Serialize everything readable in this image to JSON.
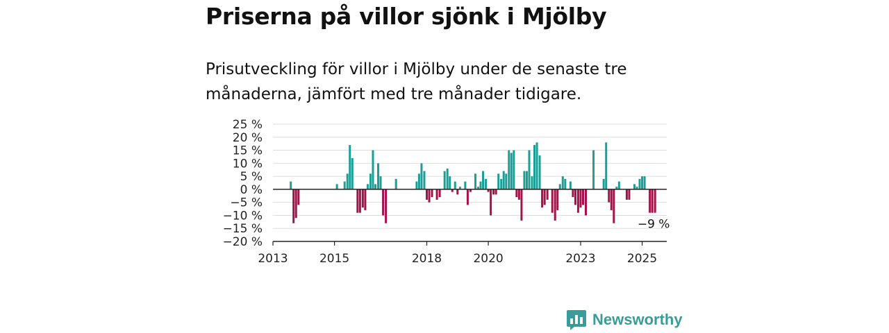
{
  "title": "Priserna på villor sjönk i Mjölby",
  "subtitle": "Prisutveckling för villor i Mjölby under de senaste tre månaderna, jämfört med tre månader tidigare.",
  "brand": "Newsworthy",
  "chart_data": {
    "type": "bar",
    "ylim": [
      -20,
      25
    ],
    "yticks": [
      25,
      20,
      15,
      10,
      5,
      0,
      -5,
      -10,
      -15,
      -20
    ],
    "ytick_labels": [
      "25 %",
      "20 %",
      "15 %",
      "10 %",
      "5 %",
      "0 %",
      "−5 %",
      "−10 %",
      "−15 %",
      "−20 %"
    ],
    "xlim": [
      2013.0,
      2025.8
    ],
    "xticks": [
      2013,
      2015,
      2018,
      2020,
      2023,
      2025
    ],
    "xtick_labels": [
      "2013",
      "2015",
      "2018",
      "2020",
      "2023",
      "2025"
    ],
    "grid": true,
    "positive_color": "#1a9e96",
    "negative_color": "#a3134a",
    "end_label": "−9 %",
    "points": [
      {
        "x": 2013.58,
        "y": 3
      },
      {
        "x": 2013.67,
        "y": -13
      },
      {
        "x": 2013.75,
        "y": -11
      },
      {
        "x": 2013.83,
        "y": -6
      },
      {
        "x": 2015.08,
        "y": 2
      },
      {
        "x": 2015.33,
        "y": 3
      },
      {
        "x": 2015.42,
        "y": 6
      },
      {
        "x": 2015.5,
        "y": 17
      },
      {
        "x": 2015.58,
        "y": 12
      },
      {
        "x": 2015.75,
        "y": -9
      },
      {
        "x": 2015.83,
        "y": -9
      },
      {
        "x": 2015.92,
        "y": -7
      },
      {
        "x": 2016.0,
        "y": -8
      },
      {
        "x": 2016.08,
        "y": 2
      },
      {
        "x": 2016.17,
        "y": 6
      },
      {
        "x": 2016.25,
        "y": 15
      },
      {
        "x": 2016.33,
        "y": 2
      },
      {
        "x": 2016.42,
        "y": 10
      },
      {
        "x": 2016.5,
        "y": 5
      },
      {
        "x": 2016.58,
        "y": -10
      },
      {
        "x": 2016.67,
        "y": -13
      },
      {
        "x": 2017.0,
        "y": 4
      },
      {
        "x": 2017.67,
        "y": 3
      },
      {
        "x": 2017.75,
        "y": 6
      },
      {
        "x": 2017.83,
        "y": 10
      },
      {
        "x": 2017.92,
        "y": 7
      },
      {
        "x": 2018.0,
        "y": -4
      },
      {
        "x": 2018.08,
        "y": -5
      },
      {
        "x": 2018.17,
        "y": -3
      },
      {
        "x": 2018.33,
        "y": -4
      },
      {
        "x": 2018.42,
        "y": -3
      },
      {
        "x": 2018.58,
        "y": 7
      },
      {
        "x": 2018.67,
        "y": 8
      },
      {
        "x": 2018.75,
        "y": 5
      },
      {
        "x": 2018.83,
        "y": -1
      },
      {
        "x": 2018.92,
        "y": 3
      },
      {
        "x": 2019.0,
        "y": -2
      },
      {
        "x": 2019.08,
        "y": 1
      },
      {
        "x": 2019.25,
        "y": 3
      },
      {
        "x": 2019.33,
        "y": -6
      },
      {
        "x": 2019.42,
        "y": -1
      },
      {
        "x": 2019.58,
        "y": 6
      },
      {
        "x": 2019.67,
        "y": 1
      },
      {
        "x": 2019.75,
        "y": 3
      },
      {
        "x": 2019.83,
        "y": 7
      },
      {
        "x": 2019.92,
        "y": 4
      },
      {
        "x": 2020.0,
        "y": -1
      },
      {
        "x": 2020.08,
        "y": -10
      },
      {
        "x": 2020.17,
        "y": -2
      },
      {
        "x": 2020.25,
        "y": -2
      },
      {
        "x": 2020.33,
        "y": 6
      },
      {
        "x": 2020.42,
        "y": 4
      },
      {
        "x": 2020.5,
        "y": 7
      },
      {
        "x": 2020.58,
        "y": 6
      },
      {
        "x": 2020.67,
        "y": 15
      },
      {
        "x": 2020.75,
        "y": 14
      },
      {
        "x": 2020.83,
        "y": 15
      },
      {
        "x": 2020.92,
        "y": -3
      },
      {
        "x": 2021.0,
        "y": -4
      },
      {
        "x": 2021.08,
        "y": -12
      },
      {
        "x": 2021.17,
        "y": 7
      },
      {
        "x": 2021.25,
        "y": 7
      },
      {
        "x": 2021.33,
        "y": 15
      },
      {
        "x": 2021.42,
        "y": 5
      },
      {
        "x": 2021.5,
        "y": 17
      },
      {
        "x": 2021.58,
        "y": 18
      },
      {
        "x": 2021.67,
        "y": 13
      },
      {
        "x": 2021.75,
        "y": -7
      },
      {
        "x": 2021.83,
        "y": -6
      },
      {
        "x": 2021.92,
        "y": -4
      },
      {
        "x": 2022.08,
        "y": -9
      },
      {
        "x": 2022.17,
        "y": -12
      },
      {
        "x": 2022.25,
        "y": -8
      },
      {
        "x": 2022.33,
        "y": 2
      },
      {
        "x": 2022.42,
        "y": 5
      },
      {
        "x": 2022.5,
        "y": 4
      },
      {
        "x": 2022.67,
        "y": 3
      },
      {
        "x": 2022.75,
        "y": -3
      },
      {
        "x": 2022.83,
        "y": -6
      },
      {
        "x": 2022.92,
        "y": -9
      },
      {
        "x": 2023.0,
        "y": -7
      },
      {
        "x": 2023.08,
        "y": -6
      },
      {
        "x": 2023.17,
        "y": -10
      },
      {
        "x": 2023.42,
        "y": 15
      },
      {
        "x": 2023.75,
        "y": 4
      },
      {
        "x": 2023.83,
        "y": 18
      },
      {
        "x": 2023.92,
        "y": -5
      },
      {
        "x": 2024.0,
        "y": -8
      },
      {
        "x": 2024.08,
        "y": -13
      },
      {
        "x": 2024.17,
        "y": 1
      },
      {
        "x": 2024.25,
        "y": 3
      },
      {
        "x": 2024.5,
        "y": -4
      },
      {
        "x": 2024.58,
        "y": -4
      },
      {
        "x": 2024.75,
        "y": 2
      },
      {
        "x": 2024.83,
        "y": 1
      },
      {
        "x": 2024.92,
        "y": 4
      },
      {
        "x": 2025.0,
        "y": 5
      },
      {
        "x": 2025.08,
        "y": 5
      },
      {
        "x": 2025.25,
        "y": -9
      },
      {
        "x": 2025.33,
        "y": -9
      },
      {
        "x": 2025.42,
        "y": -9
      }
    ]
  }
}
